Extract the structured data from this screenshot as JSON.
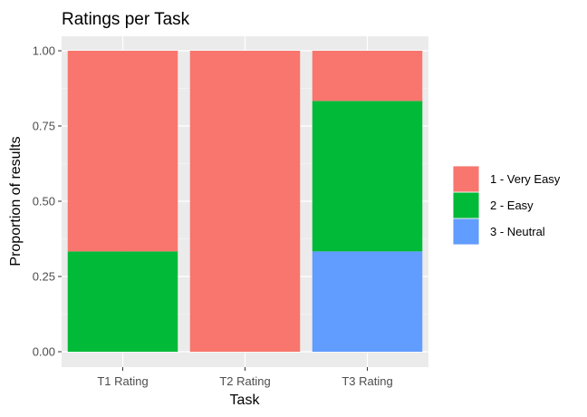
{
  "chart_data": {
    "type": "bar",
    "stacked": true,
    "title": "Ratings per Task",
    "xlabel": "Task",
    "ylabel": "Proportion of results",
    "categories": [
      "T1 Rating",
      "T2 Rating",
      "T3 Rating"
    ],
    "ylim": [
      0,
      1
    ],
    "yticks": [
      "0.00",
      "0.25",
      "0.50",
      "0.75",
      "1.00"
    ],
    "series": [
      {
        "name": "1 - Very Easy",
        "color": "#F8766D",
        "values": [
          0.6667,
          1.0,
          0.1667
        ]
      },
      {
        "name": "2 - Easy",
        "color": "#00BA38",
        "values": [
          0.3333,
          0.0,
          0.5
        ]
      },
      {
        "name": "3 - Neutral",
        "color": "#619CFF",
        "values": [
          0.0,
          0.0,
          0.3333
        ]
      }
    ],
    "grid": true,
    "legend_position": "right"
  }
}
